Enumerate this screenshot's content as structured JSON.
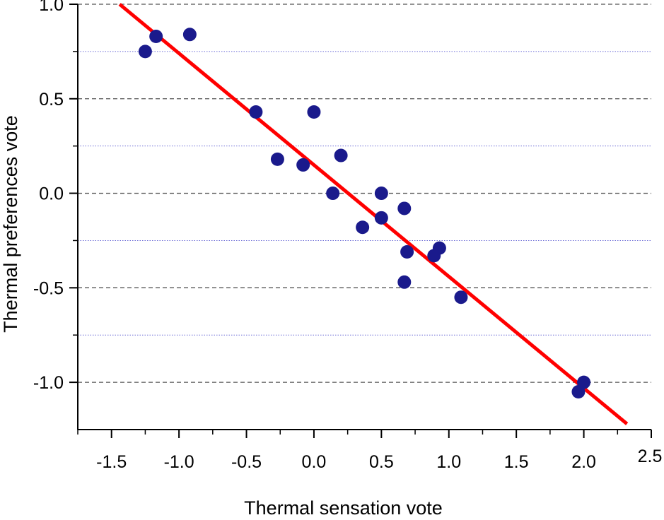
{
  "chart_data": {
    "type": "scatter",
    "title": "",
    "xlabel": "Thermal sensation vote",
    "ylabel": "Thermal preferences vote",
    "xlim": [
      -1.75,
      2.5
    ],
    "ylim": [
      -1.25,
      1.0
    ],
    "x_ticks": [
      -1.5,
      -1.0,
      -0.5,
      0.0,
      0.5,
      1.0,
      1.5,
      2.0,
      2.5
    ],
    "x_tick_labels": [
      "-1.5",
      "-1.0",
      "-0.5",
      "0.0",
      "0.5",
      "1.0",
      "1.5",
      "2.0",
      "2.5"
    ],
    "y_ticks": [
      1.0,
      0.5,
      0.0,
      -0.5,
      -1.0
    ],
    "y_tick_labels": [
      "1.0",
      "0.5",
      "0.0",
      "-0.5",
      "-1.0"
    ],
    "y_minor_gridlines": [
      0.75,
      0.25,
      -0.25,
      -0.75
    ],
    "grid": true,
    "marker_color": "#1a1a8c",
    "line_color": "#ff0000",
    "major_grid_color": "#555555",
    "minor_grid_color": "#6b6bd6",
    "series": [
      {
        "type": "scatter",
        "points": [
          {
            "x": -1.25,
            "y": 0.75
          },
          {
            "x": -1.17,
            "y": 0.83
          },
          {
            "x": -0.92,
            "y": 0.84
          },
          {
            "x": -0.43,
            "y": 0.43
          },
          {
            "x": -0.27,
            "y": 0.18
          },
          {
            "x": -0.08,
            "y": 0.15
          },
          {
            "x": 0.0,
            "y": 0.43
          },
          {
            "x": 0.14,
            "y": 0.0
          },
          {
            "x": 0.2,
            "y": 0.2
          },
          {
            "x": 0.36,
            "y": -0.18
          },
          {
            "x": 0.5,
            "y": 0.0
          },
          {
            "x": 0.5,
            "y": -0.13
          },
          {
            "x": 0.67,
            "y": -0.08
          },
          {
            "x": 0.69,
            "y": -0.31
          },
          {
            "x": 0.67,
            "y": -0.47
          },
          {
            "x": 0.89,
            "y": -0.33
          },
          {
            "x": 0.93,
            "y": -0.29
          },
          {
            "x": 1.09,
            "y": -0.55
          },
          {
            "x": 1.96,
            "y": -1.05
          },
          {
            "x": 2.0,
            "y": -1.0
          }
        ]
      },
      {
        "type": "line",
        "points": [
          {
            "x": -1.44,
            "y": 1.0
          },
          {
            "x": 2.32,
            "y": -1.22
          }
        ]
      }
    ]
  }
}
